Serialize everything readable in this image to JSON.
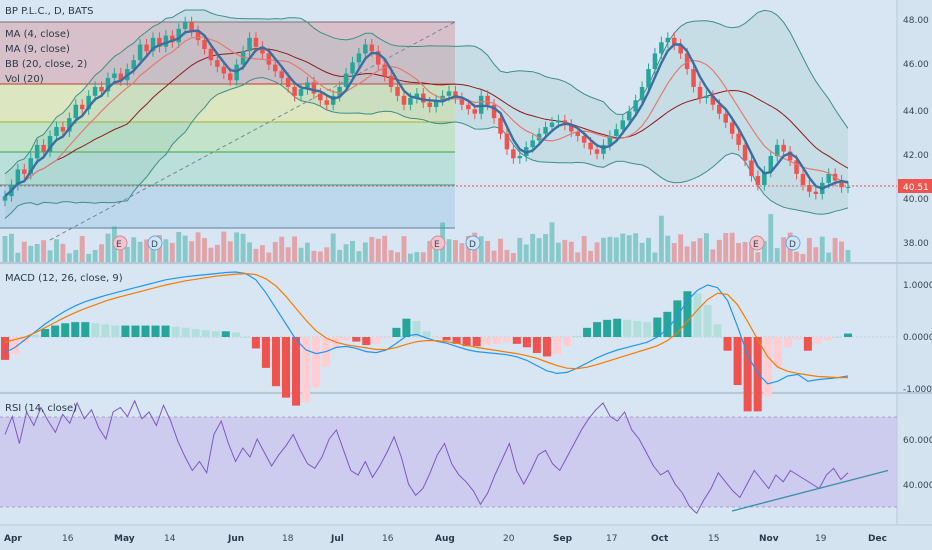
{
  "colors": {
    "background": "#d4e3f0",
    "up": "#26a69a",
    "down": "#ef5350",
    "ma4": "#3b6fa0",
    "ma9": "#e17b75",
    "bb": "#3f8f86",
    "bb_mid": "#8b1c1c",
    "macd": "#2196f3",
    "signal": "#f57c00",
    "rsi": "#7e57c2",
    "price_tag": "#ef5350"
  },
  "legend": {
    "title": "BP P.L.C., D, BATS",
    "ma4": "MA (4, close)",
    "ma9": "MA (9, close)",
    "bb": "BB (20, close, 2)",
    "vol": "Vol (20)"
  },
  "macd_label": "MACD (12, 26, close, 9)",
  "rsi_label": "RSI (14, close)",
  "last_price": "40.51",
  "events": [
    "E",
    "D",
    "E",
    "D",
    "E",
    "D"
  ],
  "chart_data": [
    {
      "type": "candlestick",
      "title": "BP P.L.C., D, BATS",
      "x": [
        "Apr",
        "16",
        "May",
        "14",
        "Jun",
        "18",
        "Jul",
        "16",
        "Aug",
        "20",
        "Sep",
        "17",
        "Oct",
        "15",
        "Nov",
        "19",
        "Dec"
      ],
      "yticks": [
        "48.00",
        "46.00",
        "44.00",
        "42.00",
        "40.00",
        "38.00"
      ],
      "ylim": [
        37.3,
        48.5
      ],
      "last_price": 40.51,
      "closes": [
        40.1,
        40.6,
        41.3,
        41.1,
        41.8,
        42.4,
        42.1,
        42.8,
        43.2,
        43.0,
        43.6,
        44.2,
        44.0,
        44.6,
        45.0,
        44.8,
        45.4,
        45.6,
        45.3,
        45.8,
        46.2,
        46.9,
        46.6,
        47.2,
        46.8,
        47.3,
        47.0,
        47.6,
        47.9,
        47.5,
        47.1,
        46.7,
        46.2,
        45.9,
        45.6,
        45.3,
        46.0,
        46.6,
        47.2,
        46.8,
        46.5,
        46.0,
        45.7,
        45.4,
        45.0,
        44.6,
        44.9,
        45.2,
        44.7,
        44.4,
        44.2,
        44.6,
        45.0,
        45.6,
        46.1,
        46.5,
        46.9,
        46.6,
        46.0,
        45.5,
        45.0,
        44.6,
        44.2,
        44.5,
        44.7,
        44.3,
        44.1,
        44.4,
        44.6,
        44.8,
        44.5,
        44.2,
        44.0,
        43.8,
        44.6,
        44.2,
        43.6,
        42.9,
        42.2,
        41.8,
        41.9,
        42.3,
        42.6,
        42.9,
        43.2,
        43.4,
        43.5,
        43.3,
        43.0,
        42.8,
        42.5,
        42.2,
        42.0,
        42.4,
        42.8,
        43.1,
        43.5,
        43.9,
        44.4,
        45.0,
        45.8,
        46.5,
        47.0,
        47.2,
        46.9,
        46.5,
        45.8,
        45.0,
        44.5,
        44.6,
        44.2,
        43.8,
        43.4,
        42.9,
        42.4,
        41.7,
        41.0,
        40.6,
        41.2,
        41.9,
        42.4,
        42.1,
        41.7,
        41.1,
        40.6,
        40.3,
        40.2,
        40.7,
        41.1,
        40.8,
        40.5,
        40.51
      ]
    },
    {
      "type": "line",
      "title": "MACD (12, 26, close, 9)",
      "yticks": [
        "1.0000",
        "0.0000",
        "-1.0000"
      ],
      "ylim": [
        -1.07,
        1.28
      ],
      "series": [
        {
          "name": "MACD",
          "values": [
            -0.3,
            -0.2,
            -0.05,
            0.1,
            0.25,
            0.38,
            0.5,
            0.6,
            0.68,
            0.74,
            0.8,
            0.85,
            0.9,
            0.95,
            1.0,
            1.05,
            1.1,
            1.13,
            1.16,
            1.18,
            1.2,
            1.22,
            1.24,
            1.25,
            1.22,
            1.1,
            0.85,
            0.55,
            0.25,
            -0.05,
            -0.25,
            -0.32,
            -0.28,
            -0.2,
            -0.18,
            -0.22,
            -0.28,
            -0.3,
            -0.25,
            -0.12,
            0.02,
            0.05,
            -0.02,
            -0.08,
            -0.12,
            -0.18,
            -0.24,
            -0.28,
            -0.3,
            -0.32,
            -0.34,
            -0.38,
            -0.45,
            -0.55,
            -0.65,
            -0.7,
            -0.68,
            -0.6,
            -0.5,
            -0.4,
            -0.32,
            -0.25,
            -0.2,
            -0.15,
            -0.1,
            0.0,
            0.15,
            0.4,
            0.7,
            0.9,
            1.0,
            0.95,
            0.7,
            0.2,
            -0.35,
            -0.7,
            -0.9,
            -0.85,
            -0.75,
            -0.72,
            -0.85,
            -0.82,
            -0.8,
            -0.78,
            -0.75
          ]
        },
        {
          "name": "Signal",
          "values": [
            -0.1,
            -0.05,
            0.0,
            0.08,
            0.18,
            0.28,
            0.38,
            0.47,
            0.55,
            0.62,
            0.69,
            0.75,
            0.8,
            0.85,
            0.9,
            0.95,
            1.0,
            1.04,
            1.08,
            1.11,
            1.14,
            1.17,
            1.19,
            1.21,
            1.22,
            1.2,
            1.12,
            0.98,
            0.78,
            0.55,
            0.32,
            0.12,
            -0.02,
            -0.1,
            -0.15,
            -0.18,
            -0.21,
            -0.24,
            -0.24,
            -0.2,
            -0.14,
            -0.09,
            -0.07,
            -0.07,
            -0.09,
            -0.12,
            -0.16,
            -0.2,
            -0.23,
            -0.26,
            -0.29,
            -0.32,
            -0.36,
            -0.41,
            -0.48,
            -0.55,
            -0.6,
            -0.61,
            -0.58,
            -0.53,
            -0.47,
            -0.41,
            -0.35,
            -0.29,
            -0.23,
            -0.17,
            -0.07,
            0.08,
            0.3,
            0.52,
            0.72,
            0.84,
            0.82,
            0.62,
            0.3,
            -0.05,
            -0.38,
            -0.58,
            -0.66,
            -0.7,
            -0.73,
            -0.76,
            -0.77,
            -0.78,
            -0.78
          ]
        }
      ]
    },
    {
      "type": "line",
      "title": "RSI (14, close)",
      "yticks": [
        "60.0000",
        "40.0000"
      ],
      "ylim": [
        23.0,
        82.0
      ],
      "series": [
        {
          "name": "RSI",
          "values": [
            62,
            70,
            58,
            72,
            66,
            74,
            68,
            63,
            71,
            67,
            76,
            69,
            73,
            65,
            60,
            72,
            74,
            70,
            77,
            69,
            72,
            66,
            75,
            68,
            59,
            52,
            46,
            50,
            45,
            62,
            68,
            58,
            50,
            56,
            52,
            60,
            54,
            48,
            53,
            57,
            62,
            55,
            49,
            47,
            52,
            60,
            64,
            55,
            46,
            44,
            50,
            43,
            48,
            54,
            61,
            52,
            40,
            35,
            38,
            45,
            53,
            58,
            49,
            44,
            41,
            37,
            31,
            36,
            44,
            51,
            58,
            46,
            40,
            46,
            53,
            55,
            49,
            46,
            52,
            58,
            64,
            69,
            73,
            76,
            70,
            68,
            72,
            64,
            60,
            54,
            48,
            44,
            46,
            40,
            36,
            30,
            27,
            33,
            38,
            45,
            41,
            37,
            34,
            40,
            46,
            42,
            38,
            44,
            41,
            46,
            44,
            42,
            40,
            38,
            44,
            47,
            42,
            45
          ]
        },
        {
          "name": "Trend",
          "values": [
            28,
            46
          ]
        }
      ]
    }
  ]
}
